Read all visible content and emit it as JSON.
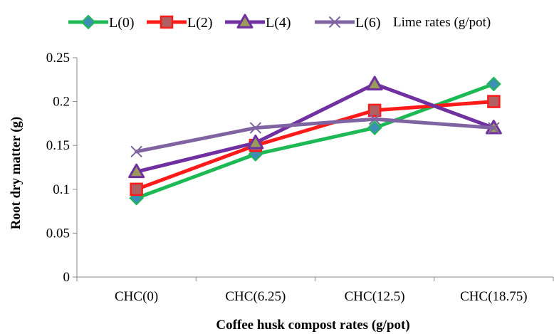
{
  "chart_data": {
    "type": "line",
    "title": "",
    "xlabel": "Coffee husk compost rates (g/pot)",
    "ylabel": "Root dry matter (g)",
    "categories": [
      "CHC(0)",
      "CHC(6.25)",
      "CHC(12.5)",
      "CHC(18.75)"
    ],
    "ylim": [
      0,
      0.25
    ],
    "yticks": [
      0,
      0.05,
      0.1,
      0.15,
      0.2,
      0.25
    ],
    "ytick_labels": [
      "0",
      "0.05",
      "0.1",
      "0.15",
      "0.2",
      "0.25"
    ],
    "grid": false,
    "legend_title": "Lime rates (g/pot)",
    "legend_placement": "top",
    "series": [
      {
        "name": "L(0)",
        "values": [
          0.09,
          0.14,
          0.17,
          0.22
        ],
        "color": "#1db954",
        "marker": "diamond",
        "marker_fill": "#3d8fb5"
      },
      {
        "name": "L(2)",
        "values": [
          0.1,
          0.15,
          0.19,
          0.2
        ],
        "color": "#ff1a1a",
        "marker": "square",
        "marker_fill": "#b06060"
      },
      {
        "name": "L(4)",
        "values": [
          0.12,
          0.153,
          0.22,
          0.17
        ],
        "color": "#7030a0",
        "marker": "triangle",
        "marker_fill": "#9a9a5a"
      },
      {
        "name": "L(6)",
        "values": [
          0.143,
          0.17,
          0.18,
          0.17
        ],
        "color": "#8064a2",
        "marker": "x",
        "marker_fill": "#8064a2"
      }
    ]
  }
}
